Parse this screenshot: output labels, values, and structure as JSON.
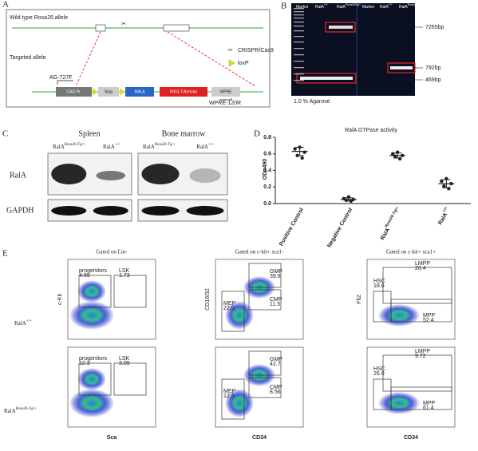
{
  "panels": {
    "A": {
      "letter": "A",
      "wild_type": "Wild type Rosa26 allele",
      "targeted": "Targeted allele",
      "legend": [
        "CRISPR/Cas9",
        "loxP"
      ],
      "primer_f": "AG-727F",
      "primer_r": "WPRE-120R",
      "elements": [
        "CAG Pr",
        "Stop",
        "RALA",
        "IRES-Tdtomato",
        "WPRE"
      ]
    },
    "B": {
      "letter": "B",
      "lanes": [
        {
          "text": "Marker"
        },
        {
          "text": "RalA",
          "sup": "+/+"
        },
        {
          "text": "RalA",
          "sup": "Rosa26Tg/+"
        },
        {
          "text": "Marker"
        },
        {
          "text": "RalA",
          "sup": "+/+"
        },
        {
          "text": "RalA",
          "sup": "Rosa26Tg/+"
        }
      ],
      "sizes": [
        "7265bp",
        "792bp",
        "469bp"
      ],
      "gel": "1.0 % Agarose"
    },
    "C": {
      "letter": "C",
      "tissues": [
        "Spleen",
        "Bone marrow"
      ],
      "columns": [
        {
          "text": "RalA",
          "sup": "Rosa26-Tg/+"
        },
        {
          "text": "RalA",
          "sup": "+/+"
        }
      ],
      "rows": [
        "RalA",
        "GAPDH"
      ]
    },
    "D": {
      "letter": "D"
    },
    "E": {
      "letter": "E",
      "titles": [
        "Gated on Lin-",
        "Gated on c-kit+ sca1-",
        "Gated on c-kit+ sca1+"
      ],
      "x_axes": [
        "Sca",
        "CD34",
        "CD34"
      ],
      "y_axes": [
        "c-Kit",
        "CD16/32",
        "Flt2"
      ],
      "rows": [
        {
          "label": {
            "text": "RalA",
            "sup": "+/+"
          },
          "plots": [
            [
              {
                "name": "progenitors",
                "value": "4.89"
              },
              {
                "name": "LSK",
                "value": "1.73"
              }
            ],
            [
              {
                "name": "GMP",
                "value": "39.8"
              },
              {
                "name": "CMP",
                "value": "11.5"
              },
              {
                "name": "MEP",
                "value": "22.0"
              }
            ],
            [
              {
                "name": "LMPP",
                "value": "20.4"
              },
              {
                "name": "HSC",
                "value": "18.6"
              },
              {
                "name": "MPP",
                "value": "52.4"
              }
            ]
          ]
        },
        {
          "label": {
            "text": "RalA",
            "sup": "Rosa26-Tg/+"
          },
          "plots": [
            [
              {
                "name": "progenitors",
                "value": "12.3"
              },
              {
                "name": "LSK",
                "value": "3.09"
              }
            ],
            [
              {
                "name": "GMP",
                "value": "42.7"
              },
              {
                "name": "CMP",
                "value": "8.56"
              },
              {
                "name": "MEP",
                "value": "12.3"
              }
            ],
            [
              {
                "name": "LMPP",
                "value": "9.72"
              },
              {
                "name": "HSC",
                "value": "26.0"
              },
              {
                "name": "MPP",
                "value": "61.4"
              }
            ]
          ]
        }
      ]
    }
  },
  "chart_data": {
    "type": "dot",
    "title": "RalA GTPase activity",
    "ylabel": "OD=490",
    "categories": [
      "Positive Control",
      "Negative Control",
      "RalA",
      "RalA"
    ],
    "category_superscripts": [
      null,
      null,
      "Rosa26-Tg/+",
      "+/+"
    ],
    "points": [
      [
        0.68,
        0.66,
        0.62,
        0.58,
        0.55
      ],
      [
        0.08,
        0.06,
        0.05,
        0.04,
        0.03
      ],
      [
        0.62,
        0.6,
        0.58,
        0.57,
        0.54
      ],
      [
        0.3,
        0.27,
        0.24,
        0.21,
        0.18
      ]
    ],
    "means": [
      0.63,
      0.05,
      0.58,
      0.24
    ],
    "errors": [
      0.05,
      0.02,
      0.03,
      0.05
    ],
    "color": "#222222",
    "ylim": [
      0,
      0.8
    ],
    "yticks": [
      {
        "value": 0,
        "label": "0.0"
      },
      0.2,
      0.4,
      0.6,
      0.8
    ]
  }
}
